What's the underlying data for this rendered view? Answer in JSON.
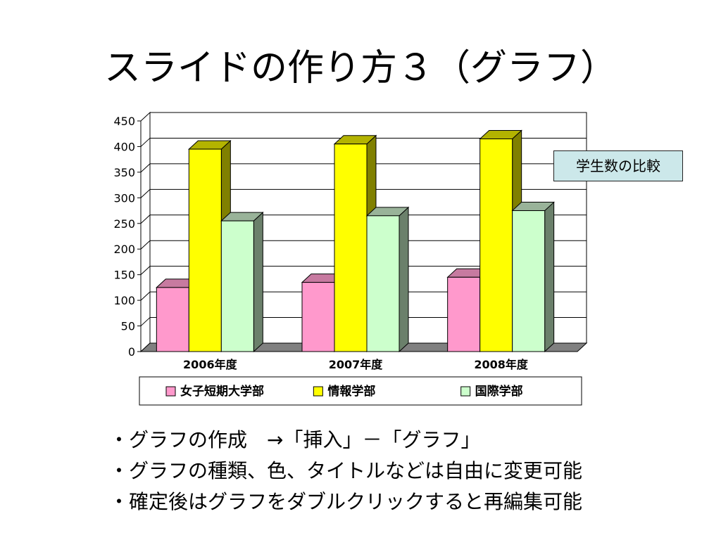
{
  "slide": {
    "title": "スライドの作り方３（グラフ）",
    "note": "学生数の比較",
    "bullets": [
      "・グラフの作成　→「挿入」－「グラフ」",
      "・グラフの種類、色、タイトルなどは自由に変更可能",
      "・確定後はグラフをダブルクリックすると再編集可能"
    ]
  },
  "chart_data": {
    "type": "bar",
    "categories": [
      "2006年度",
      "2007年度",
      "2008年度"
    ],
    "series": [
      {
        "name": "女子短期大学部",
        "values": [
          125,
          135,
          145
        ],
        "color": "#ff99cc",
        "side_color": "#b06a8d",
        "top_color": "#c77aa0"
      },
      {
        "name": "情報学部",
        "values": [
          395,
          405,
          415
        ],
        "color": "#ffff00",
        "side_color": "#808000",
        "top_color": "#b3b300"
      },
      {
        "name": "国際学部",
        "values": [
          255,
          265,
          275
        ],
        "color": "#ccffcc",
        "side_color": "#6b806b",
        "top_color": "#99b399"
      }
    ],
    "y_ticks": [
      "0",
      "50",
      "100",
      "150",
      "200",
      "250",
      "300",
      "350",
      "400",
      "450"
    ],
    "ylim": [
      0,
      450
    ],
    "grid": true,
    "legend": "bottom",
    "three_d": true
  }
}
